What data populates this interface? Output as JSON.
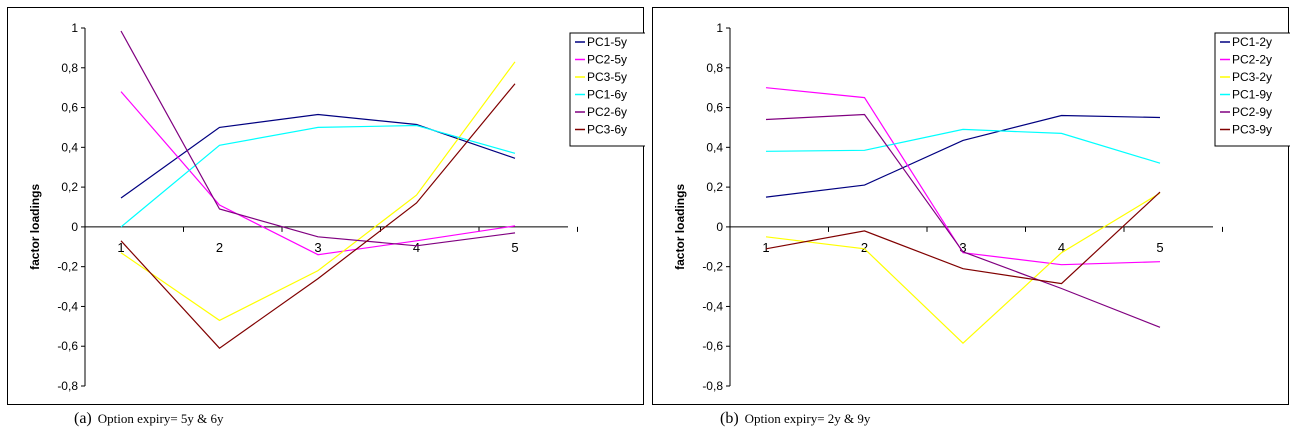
{
  "chart_data": [
    {
      "type": "line",
      "ylabel": "factor loadings",
      "xlabel": "",
      "categories": [
        "1",
        "2",
        "3",
        "4",
        "5"
      ],
      "yticks": [
        "1",
        "0,8",
        "0,6",
        "0,4",
        "0,2",
        "0",
        "-0,2",
        "-0,4",
        "-0,6",
        "-0,8"
      ],
      "ylim": [
        -0.8,
        1.0
      ],
      "grid": false,
      "legend_placement": "top-right",
      "series": [
        {
          "name": "PC1-5y",
          "color": "#000080",
          "values": [
            0.145,
            0.5,
            0.565,
            0.515,
            0.345
          ]
        },
        {
          "name": "PC2-5y",
          "color": "#ff00ff",
          "values": [
            0.68,
            0.11,
            -0.14,
            -0.07,
            0.005
          ]
        },
        {
          "name": "PC3-5y",
          "color": "#ffff00",
          "values": [
            -0.13,
            -0.47,
            -0.22,
            0.16,
            0.83
          ]
        },
        {
          "name": "PC1-6y",
          "color": "#00ffff",
          "values": [
            0.0,
            0.41,
            0.5,
            0.51,
            0.37
          ]
        },
        {
          "name": "PC2-6y",
          "color": "#800080",
          "values": [
            0.985,
            0.09,
            -0.05,
            -0.095,
            -0.03
          ]
        },
        {
          "name": "PC3-6y",
          "color": "#800000",
          "values": [
            -0.07,
            -0.61,
            -0.26,
            0.12,
            0.72
          ]
        }
      ],
      "caption": {
        "tag": "(a)",
        "text": "Option expiry= 5y & 6y"
      }
    },
    {
      "type": "line",
      "ylabel": "factor loadings",
      "xlabel": "",
      "categories": [
        "1",
        "2",
        "3",
        "4",
        "5"
      ],
      "yticks": [
        "1",
        "0,8",
        "0,6",
        "0,4",
        "0,2",
        "0",
        "-0,2",
        "-0,4",
        "-0,6",
        "-0,8"
      ],
      "ylim": [
        -0.8,
        1.0
      ],
      "grid": false,
      "legend_placement": "top-right",
      "series": [
        {
          "name": "PC1-2y",
          "color": "#000080",
          "values": [
            0.15,
            0.21,
            0.435,
            0.56,
            0.55
          ]
        },
        {
          "name": "PC2-2y",
          "color": "#ff00ff",
          "values": [
            0.7,
            0.65,
            -0.13,
            -0.19,
            -0.175
          ]
        },
        {
          "name": "PC3-2y",
          "color": "#ffff00",
          "values": [
            -0.05,
            -0.11,
            -0.585,
            -0.13,
            0.17
          ]
        },
        {
          "name": "PC1-9y",
          "color": "#00ffff",
          "values": [
            0.38,
            0.385,
            0.49,
            0.47,
            0.32
          ]
        },
        {
          "name": "PC2-9y",
          "color": "#800080",
          "values": [
            0.54,
            0.565,
            -0.125,
            -0.31,
            -0.505
          ]
        },
        {
          "name": "PC3-9y",
          "color": "#800000",
          "values": [
            -0.11,
            -0.02,
            -0.21,
            -0.285,
            0.175
          ]
        }
      ],
      "caption": {
        "tag": "(b)",
        "text": "Option expiry= 2y & 9y"
      }
    }
  ]
}
